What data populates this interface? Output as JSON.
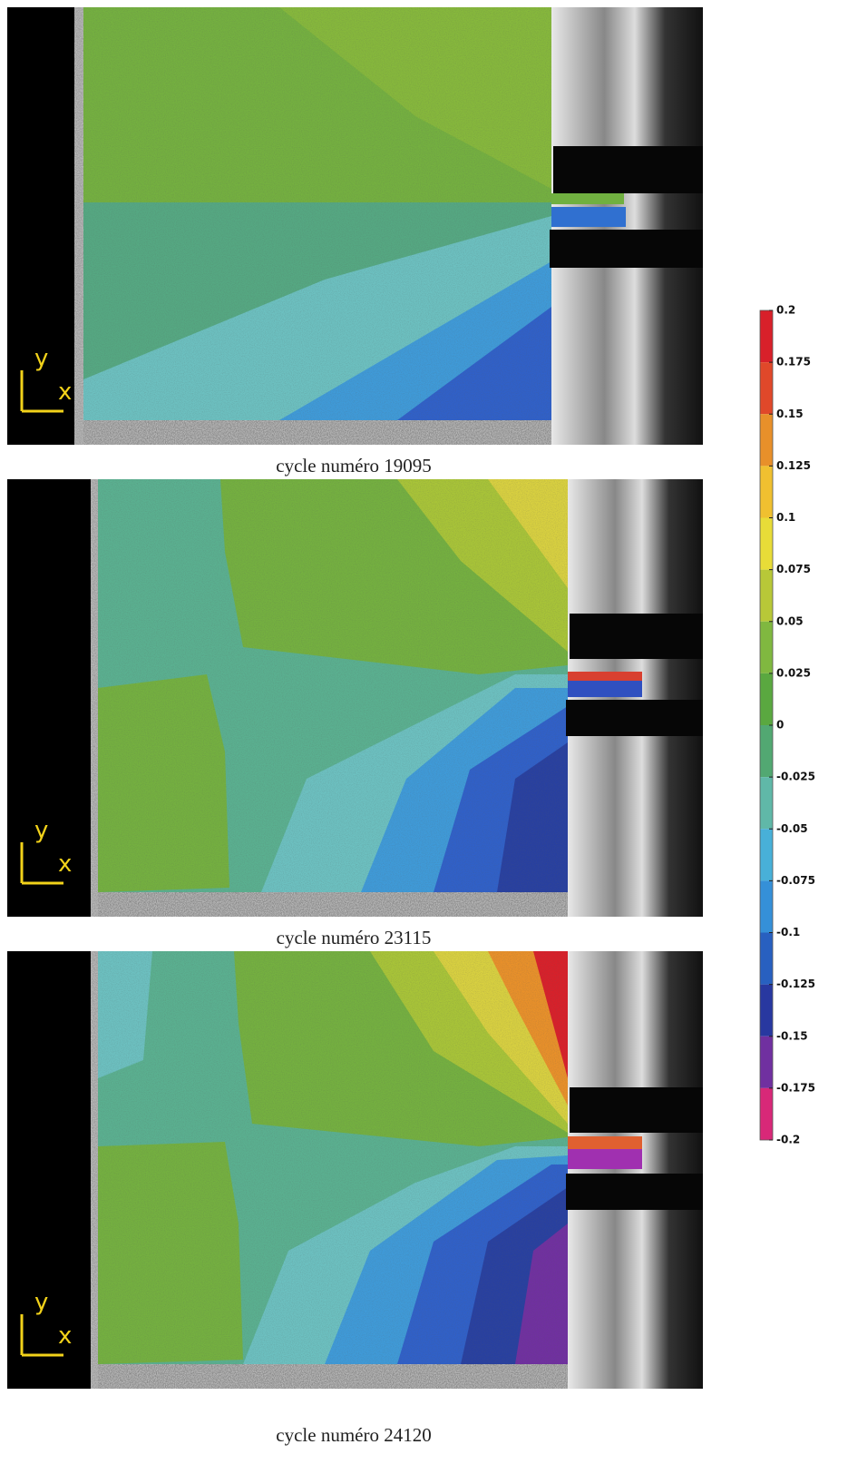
{
  "panels": [
    {
      "caption": "cycle numéro 19095",
      "axis_y": "y",
      "axis_x": "x"
    },
    {
      "caption": "cycle numéro 23115",
      "axis_y": "y",
      "axis_x": "x"
    },
    {
      "caption": "cycle numéro 24120",
      "axis_y": "y",
      "axis_x": "x"
    }
  ],
  "colorbar": {
    "ticks": [
      0.2,
      0.175,
      0.15,
      0.125,
      0.1,
      0.075,
      0.05,
      0.025,
      0,
      -0.025,
      -0.05,
      -0.075,
      -0.1,
      -0.125,
      -0.15,
      -0.175,
      -0.2
    ],
    "colors": [
      "#d8202a",
      "#e0482a",
      "#e8902a",
      "#f0c030",
      "#e8dc38",
      "#b8c838",
      "#80b840",
      "#5aa840",
      "#52a872",
      "#60b8a8",
      "#48b0d8",
      "#3590d8",
      "#2860c0",
      "#2838a0",
      "#7030a0",
      "#d82878"
    ]
  }
}
